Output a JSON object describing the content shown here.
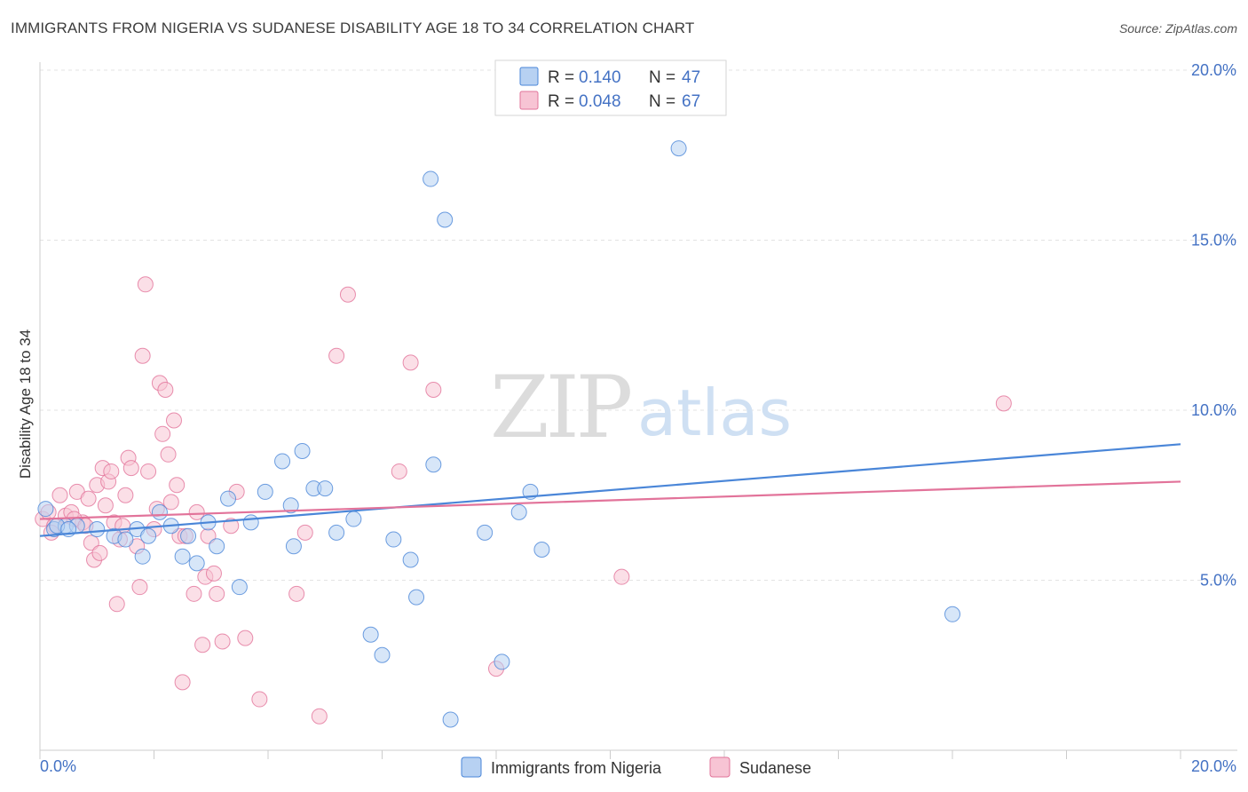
{
  "title": "IMMIGRANTS FROM NIGERIA VS SUDANESE DISABILITY AGE 18 TO 34 CORRELATION CHART",
  "source": "Source: ZipAtlas.com",
  "watermark": {
    "zip": "ZIP",
    "atlas": "atlas"
  },
  "colors": {
    "nigeria": "#4a86d8",
    "nigeria_fill": "#b7d1f2",
    "sudanese": "#e2739a",
    "sudanese_fill": "#f7c4d4",
    "tick": "#4472c4"
  },
  "legend": {
    "rows": [
      {
        "r_label": "R =",
        "r_value": "0.140",
        "n_label": "N =",
        "n_value": "47"
      },
      {
        "r_label": "R =",
        "r_value": "0.048",
        "n_label": "N =",
        "n_value": "67"
      }
    ]
  },
  "chart_data": {
    "type": "scatter",
    "title": "IMMIGRANTS FROM NIGERIA VS SUDANESE DISABILITY AGE 18 TO 34 CORRELATION CHART",
    "xlabel": "",
    "ylabel": "Disability Age 18 to 34",
    "xlim": [
      0,
      20
    ],
    "ylim": [
      0,
      20
    ],
    "x_tick_labels": [
      "0.0%",
      "20.0%"
    ],
    "y_ticks": [
      5,
      10,
      15,
      20
    ],
    "y_tick_labels": [
      "5.0%",
      "10.0%",
      "15.0%",
      "20.0%"
    ],
    "grid": true,
    "legend_position": "top-center",
    "series": [
      {
        "name": "Immigrants from Nigeria",
        "r": 0.14,
        "n": 47,
        "trend": [
          [
            0,
            6.3
          ],
          [
            20,
            9.0
          ]
        ],
        "points": [
          [
            0.1,
            7.1
          ],
          [
            0.25,
            6.5
          ],
          [
            0.45,
            6.6
          ],
          [
            0.65,
            6.6
          ],
          [
            1.0,
            6.5
          ],
          [
            1.3,
            6.3
          ],
          [
            1.7,
            6.5
          ],
          [
            1.9,
            6.3
          ],
          [
            1.8,
            5.7
          ],
          [
            2.1,
            7.0
          ],
          [
            2.3,
            6.6
          ],
          [
            2.5,
            5.7
          ],
          [
            2.6,
            6.3
          ],
          [
            2.75,
            5.5
          ],
          [
            2.95,
            6.7
          ],
          [
            3.1,
            6.0
          ],
          [
            3.3,
            7.4
          ],
          [
            3.5,
            4.8
          ],
          [
            3.7,
            6.7
          ],
          [
            3.95,
            7.6
          ],
          [
            4.25,
            8.5
          ],
          [
            4.4,
            7.2
          ],
          [
            4.45,
            6.0
          ],
          [
            4.6,
            8.8
          ],
          [
            4.8,
            7.7
          ],
          [
            5.0,
            7.7
          ],
          [
            5.2,
            6.4
          ],
          [
            5.5,
            6.8
          ],
          [
            5.8,
            3.4
          ],
          [
            6.0,
            2.8
          ],
          [
            6.2,
            6.2
          ],
          [
            6.5,
            5.6
          ],
          [
            6.6,
            4.5
          ],
          [
            6.85,
            16.8
          ],
          [
            6.9,
            8.4
          ],
          [
            7.1,
            15.6
          ],
          [
            7.2,
            0.9
          ],
          [
            7.8,
            6.4
          ],
          [
            8.1,
            2.6
          ],
          [
            8.4,
            7.0
          ],
          [
            8.6,
            7.6
          ],
          [
            8.8,
            5.9
          ],
          [
            11.2,
            17.7
          ],
          [
            16.0,
            4.0
          ],
          [
            0.3,
            6.6
          ],
          [
            0.5,
            6.5
          ],
          [
            1.5,
            6.2
          ]
        ]
      },
      {
        "name": "Sudanese",
        "r": 0.048,
        "n": 67,
        "trend": [
          [
            0,
            6.8
          ],
          [
            20,
            7.9
          ]
        ],
        "points": [
          [
            0.05,
            6.8
          ],
          [
            0.15,
            7.0
          ],
          [
            0.25,
            6.6
          ],
          [
            0.35,
            7.5
          ],
          [
            0.45,
            6.9
          ],
          [
            0.55,
            7.0
          ],
          [
            0.65,
            7.6
          ],
          [
            0.75,
            6.7
          ],
          [
            0.85,
            7.4
          ],
          [
            0.9,
            6.1
          ],
          [
            0.95,
            5.6
          ],
          [
            1.0,
            7.8
          ],
          [
            1.05,
            5.8
          ],
          [
            1.1,
            8.3
          ],
          [
            1.2,
            7.9
          ],
          [
            1.25,
            8.2
          ],
          [
            1.3,
            6.7
          ],
          [
            1.35,
            4.3
          ],
          [
            1.4,
            6.2
          ],
          [
            1.45,
            6.6
          ],
          [
            1.5,
            7.5
          ],
          [
            1.55,
            8.6
          ],
          [
            1.6,
            8.3
          ],
          [
            1.7,
            6.0
          ],
          [
            1.75,
            4.8
          ],
          [
            1.8,
            11.6
          ],
          [
            1.85,
            13.7
          ],
          [
            1.9,
            8.2
          ],
          [
            2.0,
            6.5
          ],
          [
            2.05,
            7.1
          ],
          [
            2.1,
            10.8
          ],
          [
            2.15,
            9.3
          ],
          [
            2.2,
            10.6
          ],
          [
            2.25,
            8.7
          ],
          [
            2.3,
            7.3
          ],
          [
            2.35,
            9.7
          ],
          [
            2.4,
            7.8
          ],
          [
            2.45,
            6.3
          ],
          [
            2.5,
            2.0
          ],
          [
            2.55,
            6.3
          ],
          [
            2.7,
            4.6
          ],
          [
            2.75,
            7.0
          ],
          [
            2.85,
            3.1
          ],
          [
            2.9,
            5.1
          ],
          [
            2.95,
            6.3
          ],
          [
            3.05,
            5.2
          ],
          [
            3.1,
            4.6
          ],
          [
            3.2,
            3.2
          ],
          [
            3.35,
            6.6
          ],
          [
            3.45,
            7.6
          ],
          [
            3.6,
            3.3
          ],
          [
            3.85,
            1.5
          ],
          [
            4.5,
            4.6
          ],
          [
            4.65,
            6.4
          ],
          [
            4.9,
            1.0
          ],
          [
            5.2,
            11.6
          ],
          [
            5.4,
            13.4
          ],
          [
            6.3,
            8.2
          ],
          [
            6.5,
            11.4
          ],
          [
            6.9,
            10.6
          ],
          [
            8.0,
            2.4
          ],
          [
            10.2,
            5.1
          ],
          [
            16.9,
            10.2
          ],
          [
            0.2,
            6.4
          ],
          [
            0.6,
            6.8
          ],
          [
            0.8,
            6.6
          ],
          [
            1.15,
            7.2
          ]
        ]
      }
    ]
  }
}
